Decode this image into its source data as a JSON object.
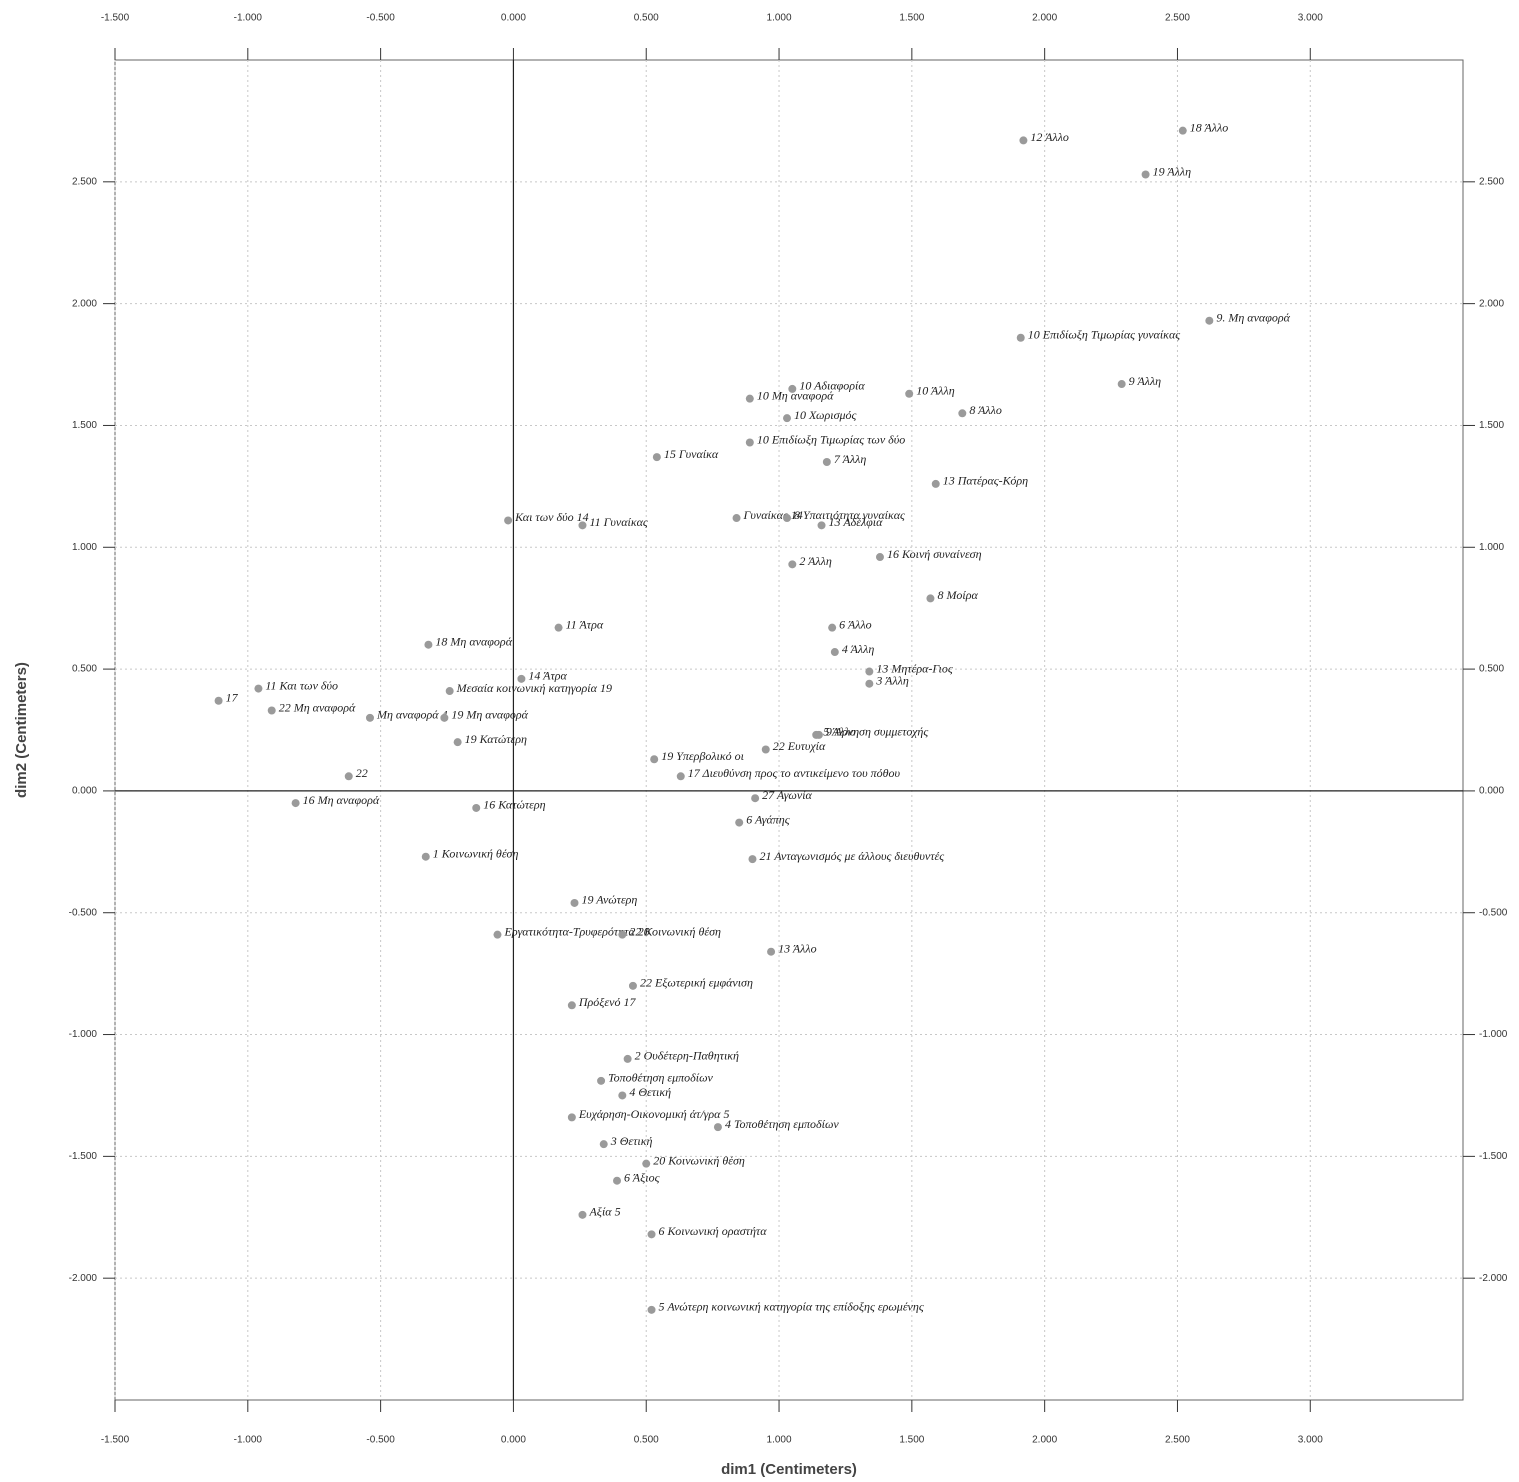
{
  "chart_data": {
    "type": "scatter",
    "x_label": "dim1  (Centimeters)",
    "y_label": "dim2  (Centimeters)",
    "xlim": [
      -1.5,
      3.575
    ],
    "ylim": [
      -2.5,
      3.0
    ],
    "xticks": [
      {
        "value": -1.5,
        "label": "-1.500"
      },
      {
        "value": -1,
        "label": "-1.000"
      },
      {
        "value": -0.5,
        "label": "-0.500"
      },
      {
        "value": 0,
        "label": "0.000"
      },
      {
        "value": 0.5,
        "label": "0.500"
      },
      {
        "value": 1,
        "label": "1.000"
      },
      {
        "value": 1.5,
        "label": "1.500"
      },
      {
        "value": 2,
        "label": "2.000"
      },
      {
        "value": 2.5,
        "label": "2.500"
      },
      {
        "value": 3,
        "label": "3.000"
      }
    ],
    "yticks": [
      {
        "value": -2,
        "label": "-2.000"
      },
      {
        "value": -1.5,
        "label": "-1.500"
      },
      {
        "value": -1,
        "label": "-1.000"
      },
      {
        "value": -0.5,
        "label": "-0.500"
      },
      {
        "value": 0,
        "label": "0.000"
      },
      {
        "value": 0.5,
        "label": "0.500"
      },
      {
        "value": 1,
        "label": "1.000"
      },
      {
        "value": 1.5,
        "label": "1.500"
      },
      {
        "value": 2,
        "label": "2.000"
      },
      {
        "value": 2.5,
        "label": "2.500"
      }
    ],
    "grid": true,
    "vline": 0,
    "hline": 0,
    "color": "#9a9a9a",
    "x": [
      2.52,
      1.92,
      2.38,
      2.62,
      1.91,
      2.29,
      1.49,
      1.69,
      1.05,
      0.89,
      1.03,
      0.89,
      1.18,
      0.54,
      1.59,
      -0.02,
      0.26,
      0.84,
      1.03,
      1.16,
      1.38,
      1.05,
      1.57,
      0.17,
      -0.32,
      1.2,
      1.21,
      1.34,
      1.34,
      0.03,
      -0.24,
      -0.96,
      -1.11,
      -0.91,
      -0.62,
      -0.54,
      -0.26,
      -0.21,
      1.14,
      1.15,
      0.95,
      0.53,
      0.63,
      0.91,
      0.85,
      0.9,
      -0.82,
      -0.06,
      0.41,
      0.97,
      0.45,
      0.22,
      0.43,
      0.33,
      0.41,
      0.77,
      0.22,
      0.34,
      0.5,
      0.39,
      0.26,
      0.52,
      0.52,
      0.23,
      -0.33,
      -0.14
    ],
    "values": [
      2.71,
      2.67,
      2.53,
      1.93,
      1.86,
      1.67,
      1.63,
      1.55,
      1.65,
      1.61,
      1.53,
      1.43,
      1.35,
      1.37,
      1.26,
      1.11,
      1.09,
      1.12,
      1.12,
      1.09,
      0.96,
      0.93,
      0.79,
      0.67,
      0.6,
      0.67,
      0.57,
      0.49,
      0.44,
      0.46,
      0.41,
      0.42,
      0.37,
      0.33,
      0.06,
      0.3,
      0.3,
      0.2,
      0.23,
      0.23,
      0.17,
      0.13,
      0.06,
      -0.03,
      -0.13,
      -0.28,
      -0.05,
      -0.59,
      -0.59,
      -0.66,
      -0.8,
      -0.88,
      -1.1,
      -1.19,
      -1.25,
      -1.38,
      -1.34,
      -1.45,
      -1.53,
      -1.6,
      -1.74,
      -1.82,
      -2.13,
      -0.46,
      -0.27,
      -0.07
    ],
    "labels": [
      "18 Άλλο",
      "12 Άλλο",
      "19 Άλλη",
      "9. Μη αναφορά",
      "10 Επιδίωξη Τιμωρίας γυναίκας",
      "9 Άλλη",
      "10 Άλλη",
      "8 Άλλο",
      "10 Αδιαφορία",
      "10 Μη αναφορά",
      "10 Χωρισμός",
      "10 Επιδίωξη Τιμωρίας των δύο",
      "7 Άλλη",
      "15 Γυναίκα",
      "13 Πατέρας-Κόρη",
      "Και των δύο 14",
      "11 Γυναίκας",
      "Γυναίκας 14",
      "8 Υπαιτιότητα γυναίκας",
      "13 Αδέλφια",
      "16 Κοινή συναίνεση",
      "2 Άλλη",
      "8 Μοίρα",
      "11 Άτρα",
      "18 Μη αναφορά",
      "6 Άλλο",
      "4 Άλλη",
      "13 Μητέρα-Γιος",
      "3 Άλλη",
      "14 Άτρα",
      "Μεσαία κοινωνική κατηγορία 19",
      "11 Και των δύο",
      "17",
      "22 Μη αναφορά",
      "22",
      "Μη αναφορά 4",
      "19 Μη αναφορά",
      "19 Κατώτερη",
      "5 Άλλο",
      "9 Άρνηση συμμετοχής",
      "22 Ευτυχία",
      "19 Υπερβολικό οι",
      "17 Διευθύνση προς το αντικείμενο του πόθου",
      "27 Αγωνία",
      "6 Αγάπης",
      "21 Ανταγωνισμός με άλλους διευθυντές",
      "16 Μη αναφορά",
      "Εργατικότητα-Τρυφερότητα 20",
      "22 Κοινωνική θέση",
      "13 Άλλο",
      "22 Εξωτερική εμφάνιση",
      "Πρόξενό 17",
      "2 Ουδέτερη-Παθητική",
      "Τοποθέτηση εμποδίων",
      "4 Θετική",
      "4 Τοποθέτηση εμποδίων",
      "Ευχάρηση-Οικονομική άτ/γρα 5",
      "3 Θετική",
      "20 Κοινωνική θέση",
      "6 Άξιος",
      "Αξία 5",
      "6 Κοινωνική οραστήτα",
      "5 Ανώτερη κοινωνική κατηγορία της επίδοξης ερωμένης",
      "19 Ανώτερη",
      "1 Κοινωνική θέση",
      "16 Κατώτερη"
    ]
  }
}
